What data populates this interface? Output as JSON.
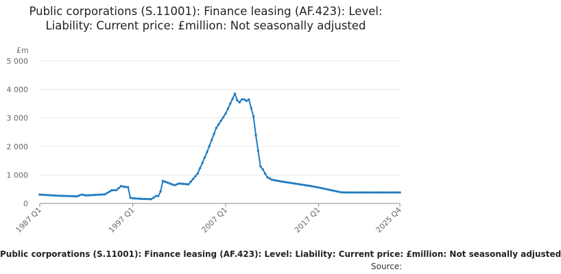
{
  "title": "Public corporations (S.11001): Finance leasing (AF.423): Level: Liability: Current price: £million: Not seasonally adjusted",
  "footer": {
    "series_label": "Public corporations (S.11001): Finance leasing (AF.423): Level: Liability: Current price: £million: Not seasonally adjusted",
    "source_label": "Source:"
  },
  "colors": {
    "series": "#1f7bbf",
    "grid": "#e6e6e6",
    "axis": "#888888",
    "text": "#666666"
  },
  "chart_data": {
    "type": "line",
    "title": "Public corporations (S.11001): Finance leasing (AF.423): Level: Liability: Current price: £million: Not seasonally adjusted",
    "ylabel": "£m",
    "xlabel": "",
    "ylim": [
      0,
      5000
    ],
    "yticks": [
      0,
      1000,
      2000,
      3000,
      4000,
      5000
    ],
    "ytick_labels": [
      "0",
      "1 000",
      "2 000",
      "3 000",
      "4 000",
      "5 000"
    ],
    "xtick_labels": [
      "1987 Q1",
      "1997 Q1",
      "2007 Q1",
      "2017 Q1",
      "2025 Q4"
    ],
    "grid": true,
    "legend": "none",
    "markers": true,
    "series": [
      {
        "x": [
          "1987 Q1",
          "1988 Q1",
          "1989 Q1",
          "1990 Q1",
          "1991 Q1",
          "1991 Q3",
          "1992 Q1",
          "1993 Q1",
          "1994 Q1",
          "1994 Q4",
          "1995 Q2",
          "1995 Q4",
          "1996 Q1",
          "1996 Q2",
          "1996 Q3",
          "1996 Q4",
          "1997 Q1",
          "1998 Q1",
          "1999 Q1",
          "1999 Q3",
          "1999 Q4",
          "2000 Q1",
          "2000 Q2",
          "2001 Q1",
          "2001 Q3",
          "2002 Q1",
          "2003 Q1",
          "2004 Q1",
          "2005 Q1",
          "2006 Q1",
          "2007 Q1",
          "2007 Q3",
          "2008 Q1",
          "2008 Q2",
          "2008 Q3",
          "2008 Q4",
          "2009 Q1",
          "2009 Q2",
          "2009 Q3",
          "2010 Q1",
          "2010 Q2",
          "2010 Q3",
          "2010 Q4",
          "2011 Q1",
          "2011 Q2",
          "2011 Q3",
          "2012 Q1",
          "2013 Q1",
          "2014 Q1",
          "2015 Q1",
          "2016 Q1",
          "2017 Q1",
          "2018 Q1",
          "2019 Q1",
          "2019 Q3",
          "2020 Q1",
          "2021 Q1",
          "2022 Q1",
          "2023 Q1",
          "2024 Q1",
          "2025 Q4"
        ],
        "values": [
          310,
          290,
          270,
          260,
          250,
          310,
          280,
          300,
          320,
          460,
          470,
          610,
          590,
          580,
          570,
          200,
          180,
          160,
          150,
          260,
          260,
          420,
          790,
          700,
          640,
          700,
          670,
          1050,
          1800,
          2650,
          3150,
          3500,
          3850,
          3620,
          3550,
          3650,
          3650,
          3600,
          3650,
          3050,
          2400,
          1850,
          1300,
          1200,
          1050,
          920,
          830,
          770,
          720,
          670,
          620,
          560,
          490,
          420,
          390,
          385,
          385,
          385,
          385,
          385,
          385
        ]
      }
    ]
  }
}
